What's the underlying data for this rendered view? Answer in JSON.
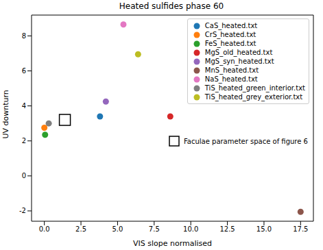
{
  "chart_data": {
    "type": "scatter",
    "title": "Heated sulfides phase 60",
    "x_label": "VIS slope normalised",
    "y_label": "UV downturn",
    "xlim": [
      -0.875,
      18.375
    ],
    "ylim": [
      -2.59,
      9.19
    ],
    "xticks": [
      {
        "value": 0,
        "label": "0.0"
      },
      {
        "value": 2.5,
        "label": "2.5"
      },
      {
        "value": 5,
        "label": "5.0"
      },
      {
        "value": 7.5,
        "label": "7.5"
      },
      {
        "value": 10,
        "label": "10.0"
      },
      {
        "value": 12.5,
        "label": "12.5"
      },
      {
        "value": 15,
        "label": "15.0"
      },
      {
        "value": 17.5,
        "label": "17.5"
      }
    ],
    "yticks": [
      -2,
      0,
      2,
      4,
      6,
      8
    ],
    "grid": false,
    "legend": "upper right",
    "series": [
      {
        "name": "CaS_heated.txt",
        "color": "#1f77b4",
        "marker": "circle",
        "x": [
          3.8
        ],
        "y": [
          3.4
        ]
      },
      {
        "name": "CrS_heated.txt",
        "color": "#ff7f0e",
        "marker": "circle",
        "x": [
          0.0
        ],
        "y": [
          2.75
        ]
      },
      {
        "name": "FeS_heated.txt",
        "color": "#2ca02c",
        "marker": "circle",
        "x": [
          0.05
        ],
        "y": [
          2.35
        ]
      },
      {
        "name": "MgS_old_heated.txt",
        "color": "#d62728",
        "marker": "circle",
        "x": [
          8.6
        ],
        "y": [
          3.4
        ]
      },
      {
        "name": "MgS_syn_heated.txt",
        "color": "#9467bd",
        "marker": "circle",
        "x": [
          4.2
        ],
        "y": [
          4.25
        ]
      },
      {
        "name": "MnS_heated.txt",
        "color": "#8c564b",
        "marker": "circle",
        "x": [
          17.5
        ],
        "y": [
          -2.05
        ]
      },
      {
        "name": "NaS_heated.txt",
        "color": "#e377c2",
        "marker": "circle",
        "x": [
          5.4
        ],
        "y": [
          8.65
        ]
      },
      {
        "name": "TiS_heated_green_interior.txt",
        "color": "#7f7f7f",
        "marker": "circle",
        "x": [
          0.3
        ],
        "y": [
          3.0
        ]
      },
      {
        "name": "TiS_heated_grey_exterior.txt",
        "color": "#bcbd22",
        "marker": "circle",
        "x": [
          6.4
        ],
        "y": [
          6.95
        ]
      },
      {
        "name": "Faculae parameter space of figure 6",
        "color": "#000000",
        "marker": "square",
        "x": [
          1.4
        ],
        "y": [
          3.2
        ]
      }
    ]
  }
}
